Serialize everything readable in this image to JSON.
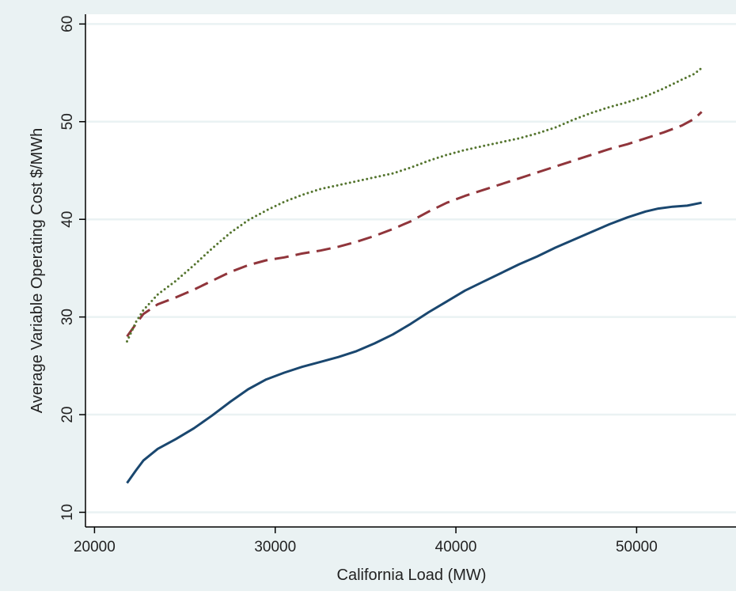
{
  "chart_data": {
    "type": "line",
    "title": "",
    "xlabel": "California Load (MW)",
    "ylabel": "Average Variable Operating Cost $/MWh",
    "xlim": [
      19500,
      55500
    ],
    "ylim": [
      8.5,
      61
    ],
    "xticks": [
      20000,
      30000,
      40000,
      50000
    ],
    "yticks": [
      10,
      20,
      30,
      40,
      50,
      60
    ],
    "grid": true,
    "legend": "none",
    "colors": {
      "outer_background": "#eaf2f3",
      "plot_background": "#ffffff",
      "gridline": "#eaf2f3",
      "axis": "#000000"
    },
    "series": [
      {
        "style": "solid",
        "color": "#1a476f",
        "x": [
          21800,
          22300,
          22700,
          23500,
          24500,
          25500,
          26500,
          27500,
          28500,
          29500,
          30500,
          31500,
          32500,
          33500,
          34500,
          35500,
          36500,
          37500,
          38500,
          39500,
          40500,
          41500,
          42500,
          43500,
          44500,
          45500,
          46500,
          47500,
          48500,
          49500,
          50500,
          51200,
          52000,
          52800,
          53600
        ],
        "y": [
          13.0,
          14.3,
          15.3,
          16.5,
          17.5,
          18.6,
          19.9,
          21.3,
          22.6,
          23.6,
          24.3,
          24.9,
          25.4,
          25.9,
          26.5,
          27.3,
          28.2,
          29.3,
          30.5,
          31.6,
          32.7,
          33.6,
          34.5,
          35.4,
          36.2,
          37.1,
          37.9,
          38.7,
          39.5,
          40.2,
          40.8,
          41.1,
          41.3,
          41.4,
          41.7
        ]
      },
      {
        "style": "dash",
        "color": "#90353b",
        "x": [
          21800,
          22300,
          22700,
          23500,
          24500,
          25500,
          26500,
          27500,
          28500,
          29500,
          30500,
          31500,
          32500,
          33500,
          34500,
          35500,
          36500,
          37500,
          38500,
          39500,
          40500,
          41500,
          42500,
          43500,
          44500,
          45500,
          46500,
          47500,
          48500,
          49500,
          50500,
          51500,
          52500,
          53200,
          53600
        ],
        "y": [
          28.0,
          29.3,
          30.3,
          31.3,
          32.0,
          32.8,
          33.7,
          34.6,
          35.3,
          35.8,
          36.1,
          36.5,
          36.8,
          37.2,
          37.7,
          38.3,
          39.0,
          39.8,
          40.8,
          41.7,
          42.4,
          43.0,
          43.6,
          44.2,
          44.8,
          45.4,
          46.0,
          46.6,
          47.2,
          47.7,
          48.3,
          48.9,
          49.6,
          50.3,
          51.0
        ]
      },
      {
        "style": "dot",
        "color": "#55752f",
        "x": [
          21800,
          22300,
          22700,
          23500,
          24500,
          25500,
          26500,
          27500,
          28500,
          29500,
          30500,
          31500,
          32500,
          33500,
          34500,
          35500,
          36500,
          37500,
          38500,
          39500,
          40500,
          41500,
          42500,
          43500,
          44500,
          45500,
          46500,
          47500,
          48500,
          49500,
          50500,
          51500,
          52500,
          53200,
          53600
        ],
        "y": [
          27.5,
          29.5,
          30.7,
          32.3,
          33.7,
          35.3,
          37.0,
          38.6,
          39.9,
          40.9,
          41.8,
          42.5,
          43.1,
          43.5,
          43.9,
          44.3,
          44.7,
          45.3,
          46.0,
          46.6,
          47.1,
          47.5,
          47.9,
          48.3,
          48.8,
          49.4,
          50.2,
          50.9,
          51.5,
          52.0,
          52.6,
          53.4,
          54.3,
          54.9,
          55.5
        ]
      }
    ]
  }
}
